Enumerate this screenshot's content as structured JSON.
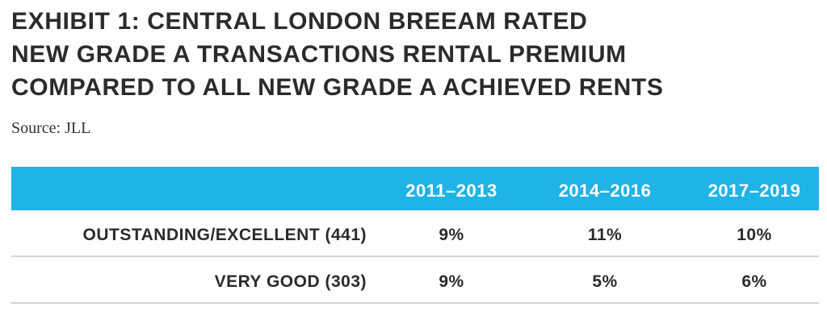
{
  "title_lines": [
    "EXHIBIT 1: CENTRAL LONDON BREEAM RATED",
    "NEW GRADE A TRANSACTIONS RENTAL PREMIUM",
    "COMPARED TO ALL NEW GRADE A ACHIEVED RENTS"
  ],
  "source": "Source: JLL",
  "colors": {
    "header_bg": "#20b3e6",
    "header_text": "#ffffff",
    "body_text": "#2b2b2b",
    "divider": "#d4d4d4"
  },
  "table": {
    "columns": [
      "2011–2013",
      "2014–2016",
      "2017–2019"
    ],
    "rows": [
      {
        "label": "OUTSTANDING/EXCELLENT (441)",
        "values": [
          "9%",
          "11%",
          "10%"
        ]
      },
      {
        "label": "VERY GOOD (303)",
        "values": [
          "9%",
          "5%",
          "6%"
        ]
      }
    ]
  }
}
